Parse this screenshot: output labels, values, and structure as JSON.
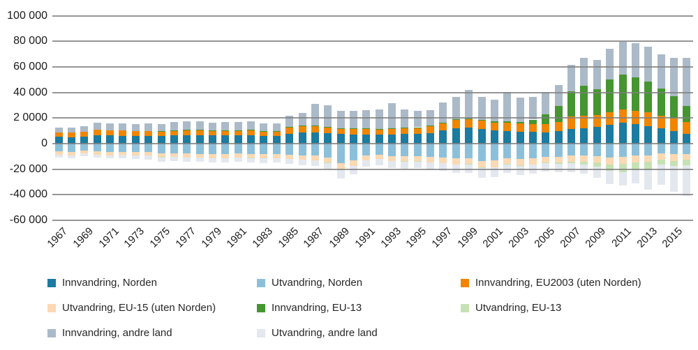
{
  "chart_data": {
    "type": "bar",
    "stacked": true,
    "title": "",
    "xlabel": "",
    "ylabel": "",
    "x": [
      1967,
      1968,
      1969,
      1970,
      1971,
      1972,
      1973,
      1974,
      1975,
      1976,
      1977,
      1978,
      1979,
      1980,
      1981,
      1982,
      1983,
      1984,
      1985,
      1986,
      1987,
      1988,
      1989,
      1990,
      1991,
      1992,
      1993,
      1994,
      1995,
      1996,
      1997,
      1998,
      1999,
      2000,
      2001,
      2002,
      2003,
      2004,
      2005,
      2006,
      2007,
      2008,
      2009,
      2010,
      2011,
      2012,
      2013,
      2014,
      2015,
      2016
    ],
    "x_tick_labels": [
      "1967",
      "1969",
      "1971",
      "1973",
      "1975",
      "1977",
      "1979",
      "1981",
      "1983",
      "1985",
      "1987",
      "1989",
      "1991",
      "1993",
      "1995",
      "1997",
      "1999",
      "2001",
      "2003",
      "2005",
      "2007",
      "2009",
      "2011",
      "2013",
      "2015"
    ],
    "y_axis": {
      "tick_labels": [
        "100 000",
        "80 000",
        "60 000",
        "40 000",
        "2 0000",
        "0",
        "-20 000",
        "-40 000",
        "-60 000"
      ],
      "tick_values": [
        100000,
        80000,
        60000,
        40000,
        20000,
        0,
        -20000,
        -40000,
        -60000
      ],
      "ylim": [
        -60000,
        100000
      ],
      "grid": true
    },
    "series": [
      {
        "name": "Innvandring, Norden",
        "color": "#1b7ba0",
        "stack": "positive",
        "values": [
          5200,
          5000,
          5500,
          6600,
          6300,
          6200,
          6100,
          6100,
          6000,
          6500,
          6700,
          6700,
          6300,
          6400,
          6500,
          6700,
          6000,
          6000,
          7600,
          8500,
          8900,
          8000,
          7400,
          7300,
          7200,
          7000,
          7200,
          7400,
          7600,
          8400,
          10200,
          12000,
          12500,
          11600,
          10300,
          10000,
          9500,
          9100,
          8800,
          9700,
          11400,
          12000,
          13000,
          14500,
          16400,
          15000,
          13700,
          11800,
          9800,
          7800
        ]
      },
      {
        "name": "Innvandring, EU2003 (uten Norden)",
        "color": "#f08500",
        "stack": "positive",
        "values": [
          3600,
          3500,
          3700,
          4300,
          4100,
          4000,
          3900,
          3900,
          3800,
          4000,
          4100,
          4100,
          3900,
          3900,
          4000,
          4000,
          3700,
          3700,
          5300,
          5600,
          4900,
          4600,
          4500,
          4400,
          4300,
          4300,
          4300,
          4600,
          4800,
          5200,
          5800,
          6600,
          6600,
          6200,
          6200,
          6600,
          6200,
          6400,
          6600,
          7400,
          9600,
          9800,
          9200,
          9800,
          10200,
          10500,
          10600,
          10200,
          9900,
          9100
        ]
      },
      {
        "name": "Innvandring, EU-13",
        "color": "#459530",
        "stack": "positive",
        "values": [
          0,
          0,
          0,
          0,
          0,
          0,
          0,
          0,
          100,
          100,
          100,
          100,
          100,
          100,
          100,
          100,
          100,
          100,
          300,
          300,
          300,
          300,
          300,
          300,
          300,
          300,
          400,
          400,
          400,
          400,
          500,
          600,
          700,
          800,
          900,
          1100,
          1200,
          3300,
          7500,
          12500,
          19600,
          23300,
          20400,
          25600,
          27300,
          26000,
          24300,
          20900,
          17200,
          12700
        ]
      },
      {
        "name": "Innvandring, andre land",
        "color": "#abbac8",
        "stack": "positive",
        "values": [
          3900,
          3900,
          4400,
          5500,
          5500,
          5500,
          5400,
          5600,
          5600,
          6300,
          6400,
          6400,
          6100,
          6400,
          6400,
          6800,
          6000,
          5900,
          8700,
          9800,
          17000,
          17100,
          13600,
          13500,
          14500,
          15100,
          19900,
          14500,
          12900,
          12400,
          15500,
          17500,
          22000,
          17900,
          16900,
          22400,
          19100,
          17700,
          17200,
          16200,
          21200,
          21900,
          22600,
          24000,
          25600,
          27100,
          27200,
          27100,
          30400,
          37200
        ]
      },
      {
        "name": "Utvandring, Norden",
        "color": "#8cc0da",
        "stack": "negative",
        "values": [
          6200,
          6400,
          5400,
          6000,
          6400,
          6300,
          6700,
          6800,
          7700,
          7400,
          7800,
          8000,
          8200,
          8200,
          7900,
          8100,
          8300,
          8200,
          8600,
          9200,
          9500,
          11000,
          15500,
          13000,
          9500,
          8600,
          9700,
          10000,
          9900,
          10500,
          10800,
          11600,
          11500,
          13500,
          13200,
          11400,
          12200,
          11400,
          10500,
          10500,
          9500,
          9400,
          9800,
          10700,
          10400,
          9100,
          9000,
          7800,
          8200,
          8000
        ]
      },
      {
        "name": "Utvandring, EU-15 (uten Norden)",
        "color": "#fbd9b3",
        "stack": "negative",
        "values": [
          2600,
          2600,
          2300,
          2500,
          2600,
          2600,
          2700,
          2700,
          2900,
          2800,
          2900,
          2900,
          3000,
          3000,
          2900,
          3000,
          3100,
          3100,
          3200,
          3400,
          3500,
          3900,
          4700,
          4200,
          3500,
          3300,
          3700,
          3800,
          3800,
          4000,
          4200,
          4500,
          4500,
          5200,
          5100,
          4600,
          4900,
          4700,
          4400,
          4400,
          4500,
          4600,
          4900,
          5500,
          5600,
          5400,
          5200,
          4700,
          5500,
          4800
        ]
      },
      {
        "name": "Utvandring, EU-13",
        "color": "#c6e2b4",
        "stack": "negative",
        "values": [
          0,
          0,
          0,
          0,
          0,
          0,
          0,
          0,
          100,
          100,
          100,
          100,
          100,
          100,
          100,
          100,
          100,
          100,
          100,
          100,
          100,
          100,
          200,
          200,
          200,
          200,
          200,
          200,
          200,
          300,
          300,
          300,
          300,
          400,
          400,
          400,
          500,
          500,
          600,
          800,
          1500,
          2300,
          3400,
          5200,
          6100,
          6400,
          6500,
          3700,
          3800,
          4200
        ]
      },
      {
        "name": "Utvandring, andre land",
        "color": "#e3e8ef",
        "stack": "negative",
        "values": [
          2200,
          2300,
          2100,
          2400,
          2700,
          2600,
          2700,
          2800,
          3300,
          3200,
          3300,
          3400,
          3400,
          3400,
          3300,
          3500,
          3600,
          3500,
          3700,
          4000,
          4300,
          4800,
          6900,
          6400,
          5000,
          4700,
          5300,
          5500,
          5400,
          5800,
          6000,
          6500,
          6500,
          7800,
          7600,
          6500,
          7100,
          6700,
          6200,
          6400,
          6600,
          7300,
          8400,
          10100,
          10400,
          10300,
          15000,
          15700,
          20000,
          23700
        ]
      }
    ],
    "legend": {
      "position": "bottom",
      "columns": 3,
      "items": [
        {
          "label": "Innvandring, Norden",
          "color": "#1b7ba0"
        },
        {
          "label": "Utvandring, Norden",
          "color": "#8cc0da"
        },
        {
          "label": "Innvandring, EU2003 (uten Norden)",
          "color": "#f08500"
        },
        {
          "label": "Utvandring, EU-15 (uten Norden)",
          "color": "#fbd9b3"
        },
        {
          "label": "Innvandring, EU-13",
          "color": "#459530"
        },
        {
          "label": "Utvandring, EU-13",
          "color": "#c6e2b4"
        },
        {
          "label": "Innvandring, andre land",
          "color": "#abbac8"
        },
        {
          "label": "Utvandring, andre land",
          "color": "#e3e8ef"
        }
      ]
    }
  }
}
